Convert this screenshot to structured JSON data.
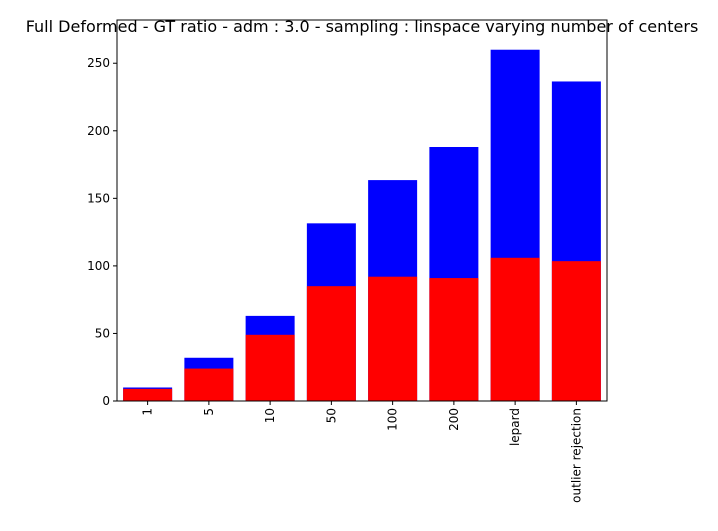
{
  "chart_data": {
    "type": "bar",
    "title": "Full Deformed - GT ratio - adm : 3.0 - sampling : linspace varying number of centers",
    "categories": [
      "1",
      "5",
      "10",
      "50",
      "100",
      "200",
      "lepard",
      "outlier rejection"
    ],
    "series": [
      {
        "color": "#0000ff",
        "values": [
          10,
          32,
          63,
          131.5,
          163.5,
          188,
          260,
          236.5
        ]
      },
      {
        "color": "#ff0000",
        "values": [
          9,
          24,
          49,
          85,
          92,
          91,
          106,
          103.5
        ]
      }
    ],
    "ylim": [
      0,
      282
    ],
    "yticks": [
      0,
      50,
      100,
      150,
      200,
      250
    ]
  }
}
